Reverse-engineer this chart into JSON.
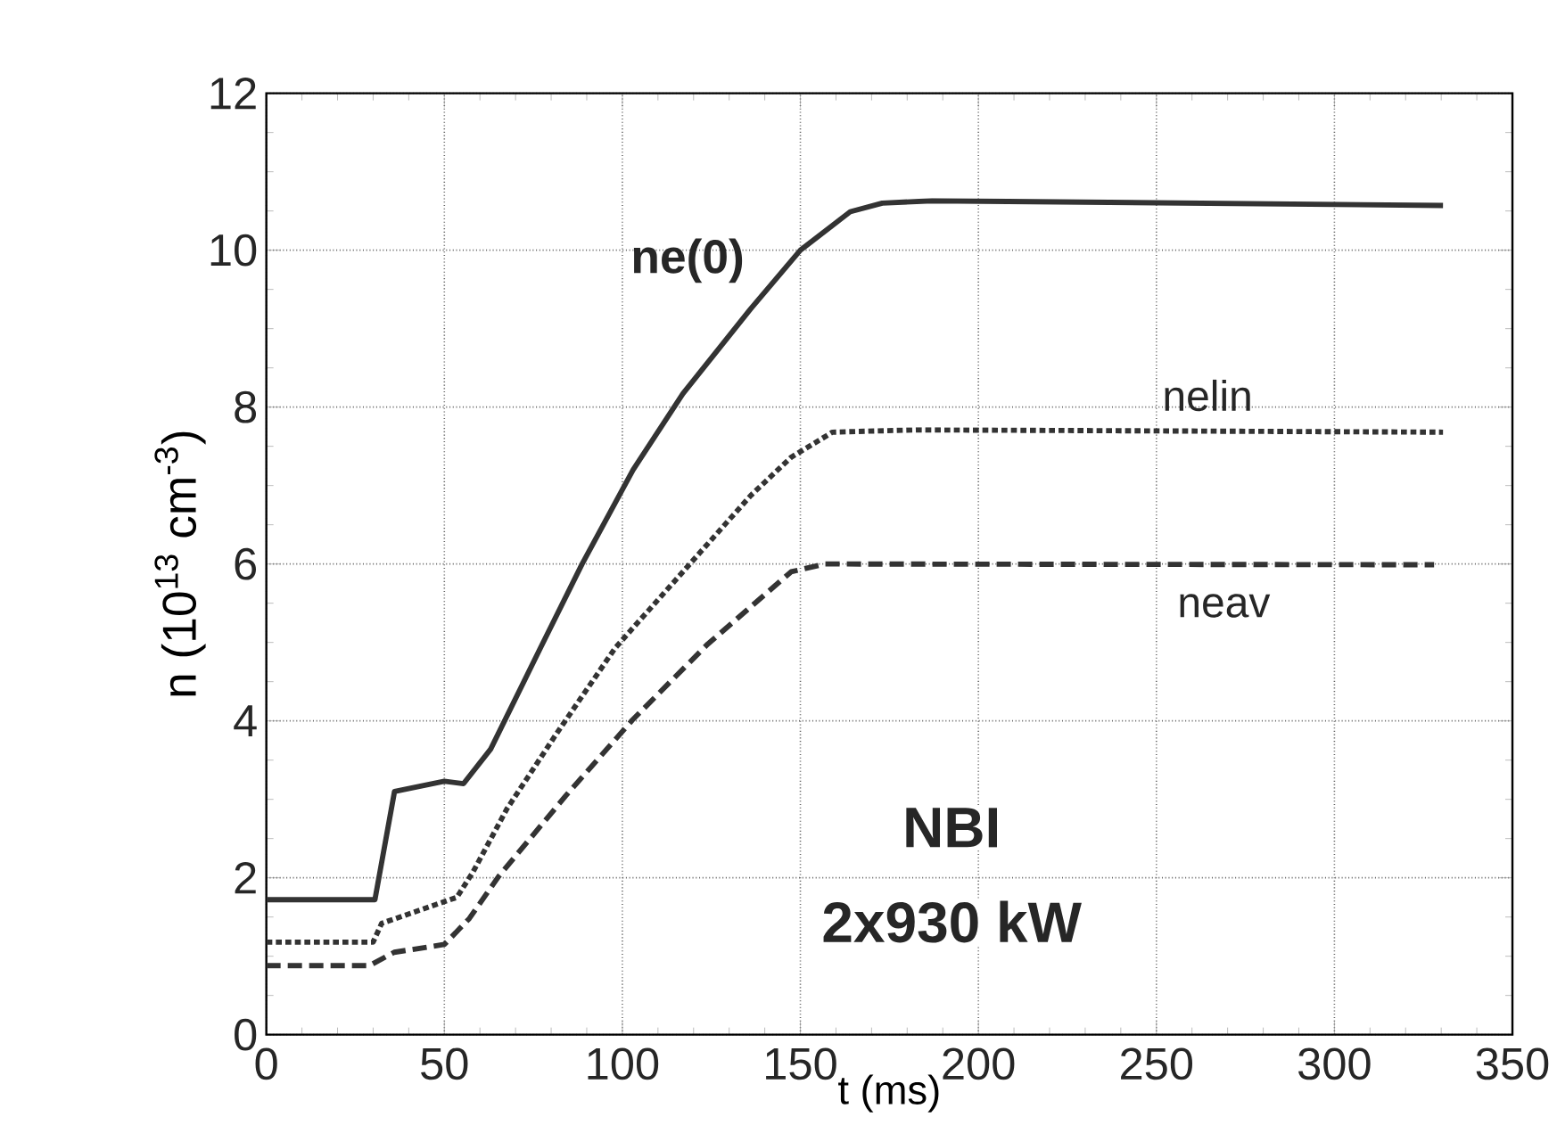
{
  "chart_data": {
    "type": "line",
    "xlabel": "t  (ms)",
    "ylabel": "n (10$^{13}$ cm$^{-3}$)",
    "xlim": [
      0,
      350
    ],
    "ylim": [
      0,
      12
    ],
    "xticks": [
      0,
      50,
      100,
      150,
      200,
      250,
      300,
      350
    ],
    "yticks": [
      0,
      2,
      4,
      6,
      8,
      10,
      12
    ],
    "grid": true,
    "legend": false,
    "marker": "none",
    "annotations": [
      "NBI",
      "2x930  kW"
    ],
    "series": [
      {
        "name": "ne(0)",
        "color": "#333333",
        "line_style": "solid",
        "x": [
          0,
          30.5,
          36,
          50,
          55.4,
          63,
          77,
          88.7,
          103,
          117,
          136,
          150,
          164,
          173,
          187,
          330.5
        ],
        "values": [
          1.72,
          1.72,
          3.1,
          3.23,
          3.2,
          3.64,
          4.93,
          6.0,
          7.2,
          8.17,
          9.25,
          10.0,
          10.49,
          10.6,
          10.63,
          10.57
        ]
      },
      {
        "name": "nelin",
        "color": "#333333",
        "line_style": "dotted",
        "x": [
          0,
          30,
          32.4,
          53.5,
          58,
          67.6,
          81.7,
          98,
          117,
          136,
          147.4,
          159,
          182.6,
          330.5
        ],
        "values": [
          1.18,
          1.18,
          1.42,
          1.75,
          2.07,
          2.88,
          3.85,
          4.93,
          5.9,
          6.87,
          7.36,
          7.68,
          7.71,
          7.68
        ]
      },
      {
        "name": "neav",
        "color": "#333333",
        "line_style": "dashed",
        "x": [
          0,
          28.9,
          35.9,
          50,
          57,
          65.3,
          84,
          102.8,
          124,
          147.4,
          156.8,
          328
        ],
        "values": [
          0.88,
          0.88,
          1.05,
          1.15,
          1.48,
          2.02,
          3.04,
          4.01,
          4.98,
          5.9,
          6.0,
          5.99
        ]
      }
    ]
  }
}
